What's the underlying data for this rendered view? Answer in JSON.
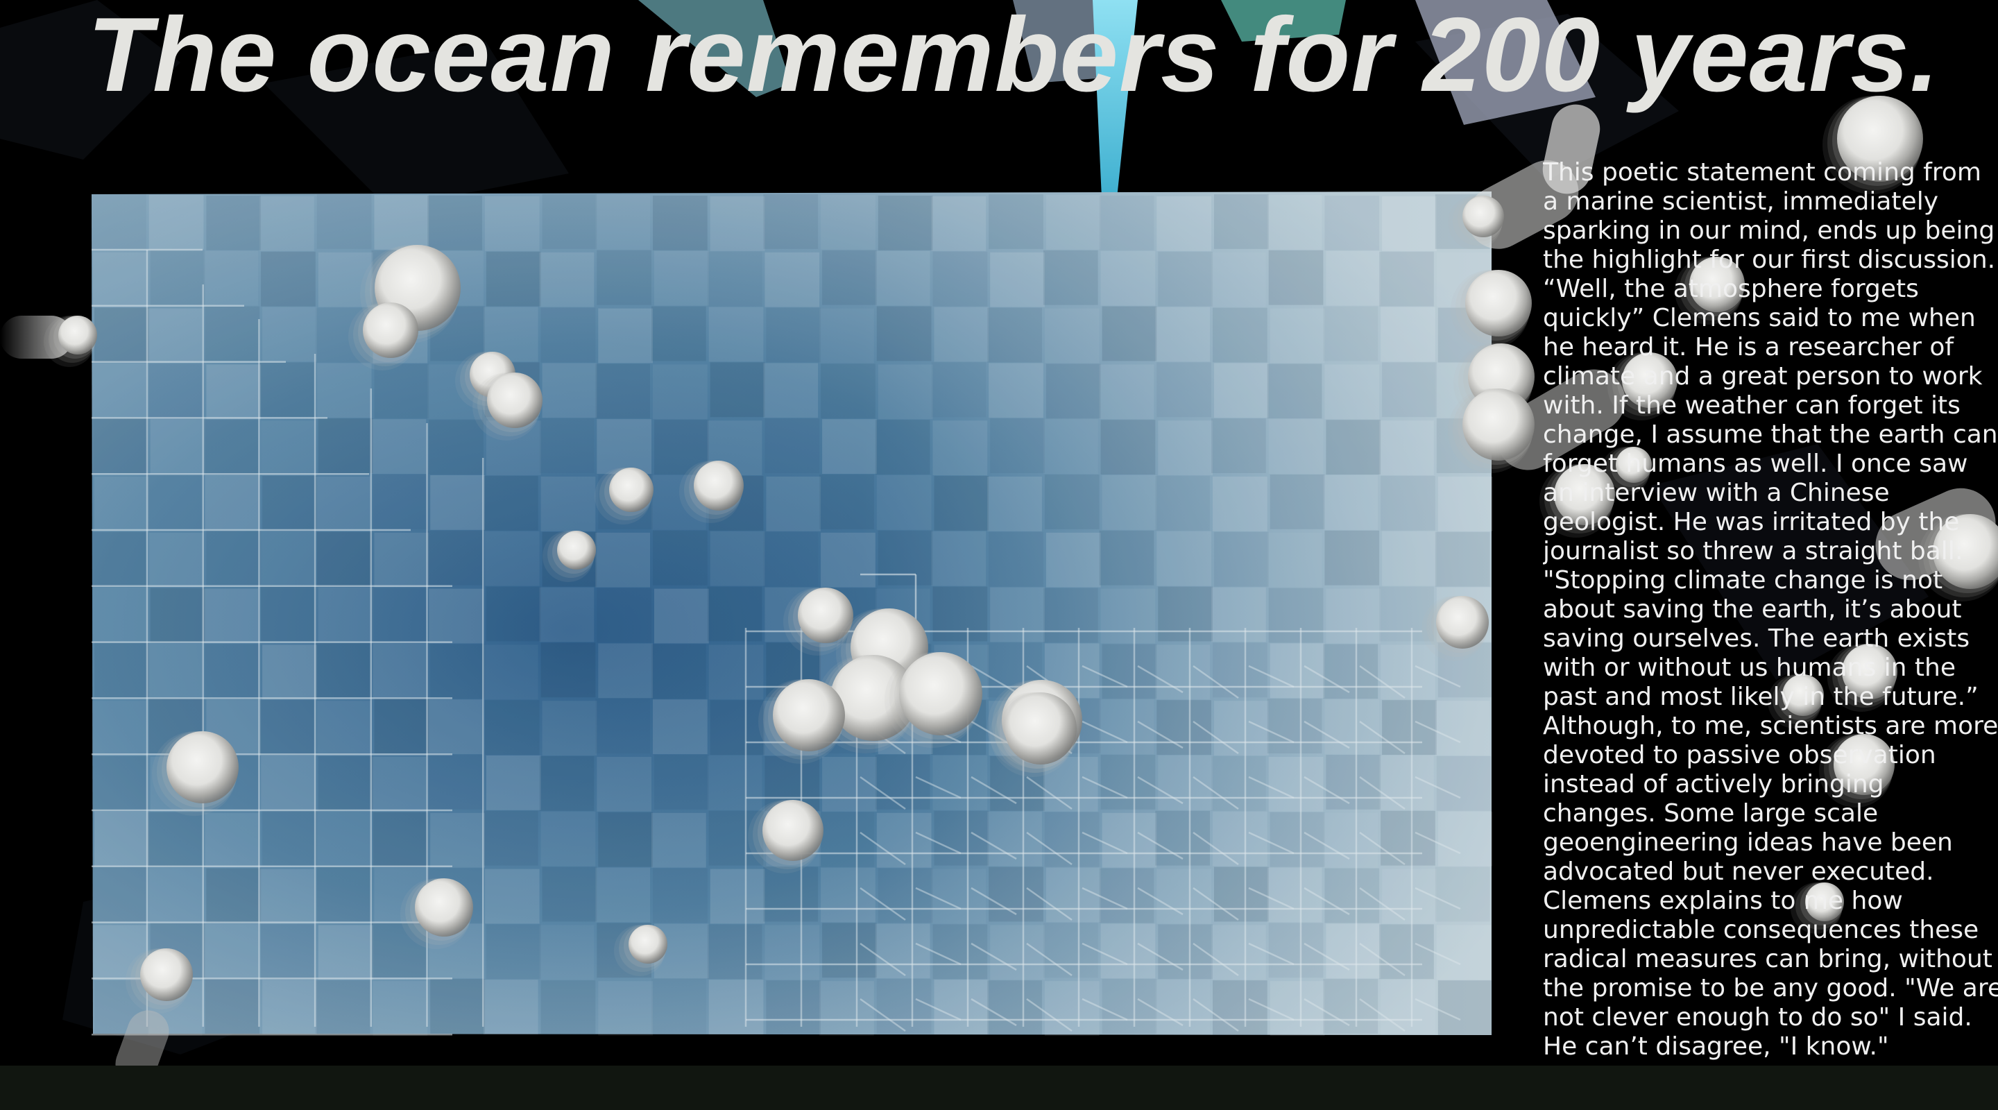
{
  "headline": "The ocean remembers for 200 years.",
  "essay_lines": [
    "This poetic statement coming from",
    "a marine scientist, immediately",
    "sparking in our mind, ends up being",
    "the highlight for our first discussion.",
    "“Well, the atmosphere forgets",
    "quickly” Clemens said to me when",
    "he heard it. He is a researcher of",
    "climate and a great person to work",
    "with. If the weather can forget its",
    "change, I assume that the earth can",
    "forget humans as well. I once saw",
    "an interview with a Chinese",
    "geologist. He was irritated by the",
    "journalist so threw a straight ball:",
    "\"Stopping climate change is not",
    "about saving the earth, it’s about",
    "saving ourselves. The earth exists",
    "with or without us humans in the",
    "past and most likely in the future.”",
    "Although, to me, scientists are more",
    "devoted to passive observation",
    "instead of actively bringing",
    "changes. Some large scale",
    "geoengineering ideas have been",
    "advocated but never executed.",
    "Clemens explains to me how",
    "unpredictable consequences these",
    "radical measures can bring, without",
    "the promise to be any good. \"We are",
    "not clever enough to do so\" I said.",
    "He can’t disagree, \"I know.\""
  ],
  "colors": {
    "ocean_deep": "#235584",
    "ocean_light": "#b6c8d2",
    "sphere": "#ececea",
    "text": "#f0f0f0"
  }
}
